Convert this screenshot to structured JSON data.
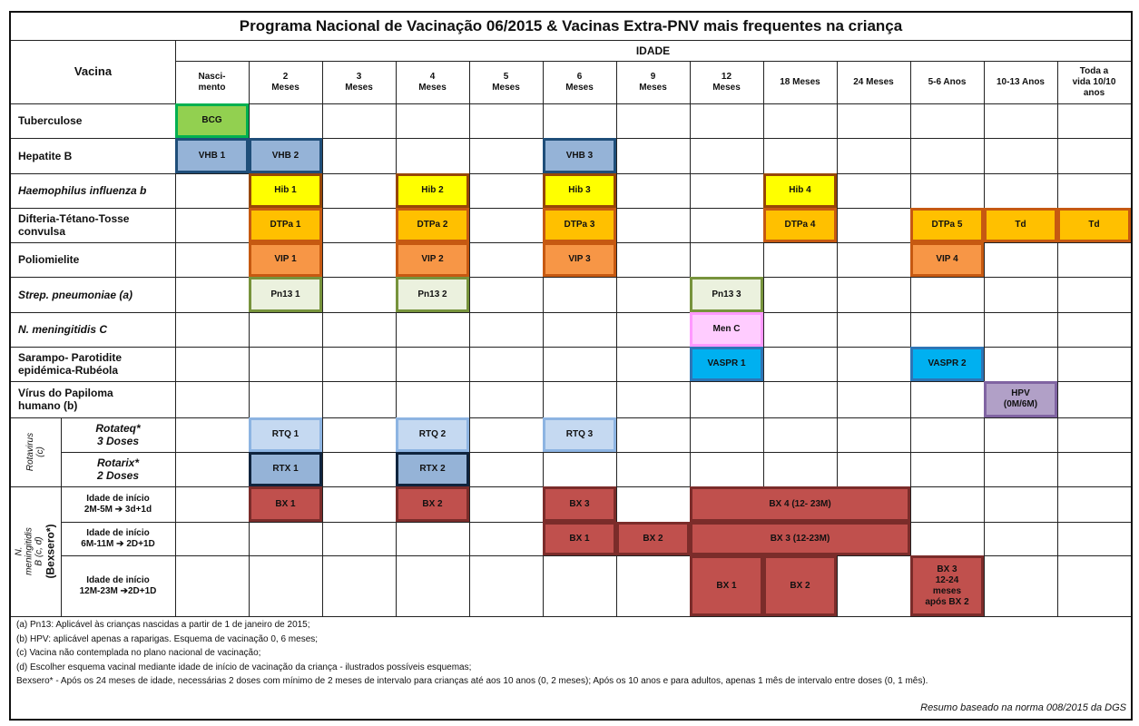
{
  "title": "Programa Nacional de Vacinação 06/2015 & Vacinas Extra-PNV mais frequentes na criança",
  "header": {
    "vacina": "Vacina",
    "idade": "IDADE",
    "ages": [
      "Nasci-\nmento",
      "2\nMeses",
      "3\nMeses",
      "4\nMeses",
      "5\nMeses",
      "6\nMeses",
      "9\nMeses",
      "12\nMeses",
      "18 Meses",
      "24 Meses",
      "5-6 Anos",
      "10-13 Anos",
      "Toda a\nvida 10/10\nanos"
    ]
  },
  "rows": [
    {
      "label": "Tuberculose",
      "italic": false
    },
    {
      "label": "Hepatite B",
      "italic": false
    },
    {
      "label": "Haemophilus influenza b",
      "italic": true
    },
    {
      "label": "Difteria-Tétano-Tosse\nconvulsa",
      "italic": false
    },
    {
      "label": "Poliomielite",
      "italic": false
    },
    {
      "label": "Strep. pneumoniae (a)",
      "italic": true
    },
    {
      "label": "N. meningitidis C",
      "italic": true
    },
    {
      "label": "Sarampo- Parotidite\nepidémica-Rubéola",
      "italic": false
    },
    {
      "label": "Vírus do Papiloma\nhumano (b)",
      "italic": false
    }
  ],
  "rotavirus": {
    "group_label": "Rotavirus\n(c)",
    "rows": [
      "Rotateq*\n3 Doses",
      "Rotarix*\n2 Doses"
    ]
  },
  "menb": {
    "group_label_a": "N. meningitidis B (c, d)",
    "group_label_b": "(Bexsero*)",
    "rows": [
      "Idade de início\n2M-5M ➔ 3d+1d",
      "Idade de início\n6M-11M ➔ 2D+1D",
      "Idade de início\n12M-23M ➔2D+1D"
    ]
  },
  "doses": [
    {
      "text": "BCG",
      "row": 0,
      "c0": 0,
      "c1": 0,
      "fill": "#92d050",
      "border": "#00b050"
    },
    {
      "text": "VHB 1",
      "row": 1,
      "c0": 0,
      "c1": 0,
      "fill": "#95b3d7",
      "border": "#1f4e79"
    },
    {
      "text": "VHB 2",
      "row": 1,
      "c0": 1,
      "c1": 1,
      "fill": "#95b3d7",
      "border": "#1f4e79"
    },
    {
      "text": "VHB 3",
      "row": 1,
      "c0": 5,
      "c1": 5,
      "fill": "#95b3d7",
      "border": "#1f4e79"
    },
    {
      "text": "Hib 1",
      "row": 2,
      "c0": 1,
      "c1": 1,
      "fill": "#ffff00",
      "border": "#974706"
    },
    {
      "text": "Hib 2",
      "row": 2,
      "c0": 3,
      "c1": 3,
      "fill": "#ffff00",
      "border": "#974706"
    },
    {
      "text": "Hib 3",
      "row": 2,
      "c0": 5,
      "c1": 5,
      "fill": "#ffff00",
      "border": "#974706"
    },
    {
      "text": "Hib 4",
      "row": 2,
      "c0": 8,
      "c1": 8,
      "fill": "#ffff00",
      "border": "#974706"
    },
    {
      "text": "DTPa 1",
      "row": 3,
      "c0": 1,
      "c1": 1,
      "fill": "#ffc000",
      "border": "#c65911"
    },
    {
      "text": "DTPa 2",
      "row": 3,
      "c0": 3,
      "c1": 3,
      "fill": "#ffc000",
      "border": "#c65911"
    },
    {
      "text": "DTPa 3",
      "row": 3,
      "c0": 5,
      "c1": 5,
      "fill": "#ffc000",
      "border": "#c65911"
    },
    {
      "text": "DTPa 4",
      "row": 3,
      "c0": 8,
      "c1": 8,
      "fill": "#ffc000",
      "border": "#c65911"
    },
    {
      "text": "DTPa 5",
      "row": 3,
      "c0": 10,
      "c1": 10,
      "fill": "#ffc000",
      "border": "#c65911"
    },
    {
      "text": "Td",
      "row": 3,
      "c0": 11,
      "c1": 11,
      "fill": "#ffc000",
      "border": "#c65911"
    },
    {
      "text": "Td",
      "row": 3,
      "c0": 12,
      "c1": 12,
      "fill": "#ffc000",
      "border": "#c65911"
    },
    {
      "text": "VIP 1",
      "row": 4,
      "c0": 1,
      "c1": 1,
      "fill": "#f79646",
      "border": "#c65911"
    },
    {
      "text": "VIP 2",
      "row": 4,
      "c0": 3,
      "c1": 3,
      "fill": "#f79646",
      "border": "#c65911"
    },
    {
      "text": "VIP 3",
      "row": 4,
      "c0": 5,
      "c1": 5,
      "fill": "#f79646",
      "border": "#c65911"
    },
    {
      "text": "VIP 4",
      "row": 4,
      "c0": 10,
      "c1": 10,
      "fill": "#f79646",
      "border": "#c65911"
    },
    {
      "text": "Pn13 1",
      "row": 5,
      "c0": 1,
      "c1": 1,
      "fill": "#ebf1de",
      "border": "#77933c"
    },
    {
      "text": "Pn13 2",
      "row": 5,
      "c0": 3,
      "c1": 3,
      "fill": "#ebf1de",
      "border": "#77933c"
    },
    {
      "text": "Pn13 3",
      "row": 5,
      "c0": 7,
      "c1": 7,
      "fill": "#ebf1de",
      "border": "#77933c"
    },
    {
      "text": "Men C",
      "row": 6,
      "c0": 7,
      "c1": 7,
      "fill": "#ffccff",
      "border": "#ff99ff"
    },
    {
      "text": "VASPR 1",
      "row": 7,
      "c0": 7,
      "c1": 7,
      "fill": "#00b0f0",
      "border": "#2e75b6"
    },
    {
      "text": "VASPR 2",
      "row": 7,
      "c0": 10,
      "c1": 10,
      "fill": "#00b0f0",
      "border": "#2e75b6"
    },
    {
      "text": "HPV\n(0M/6M)",
      "row": 8,
      "c0": 11,
      "c1": 11,
      "fill": "#b1a0c7",
      "border": "#8064a2"
    },
    {
      "text": "RTQ 1",
      "row": 9,
      "c0": 1,
      "c1": 1,
      "fill": "#c5d9f1",
      "border": "#8db4e2"
    },
    {
      "text": "RTQ 2",
      "row": 9,
      "c0": 3,
      "c1": 3,
      "fill": "#c5d9f1",
      "border": "#8db4e2"
    },
    {
      "text": "RTQ 3",
      "row": 9,
      "c0": 5,
      "c1": 5,
      "fill": "#c5d9f1",
      "border": "#8db4e2"
    },
    {
      "text": "RTX 1",
      "row": 10,
      "c0": 1,
      "c1": 1,
      "fill": "#95b3d7",
      "border": "#0f243e"
    },
    {
      "text": "RTX 2",
      "row": 10,
      "c0": 3,
      "c1": 3,
      "fill": "#95b3d7",
      "border": "#0f243e"
    },
    {
      "text": "BX 1",
      "row": 11,
      "c0": 1,
      "c1": 1,
      "fill": "#c0504d",
      "border": "#7b2c2a"
    },
    {
      "text": "BX 2",
      "row": 11,
      "c0": 3,
      "c1": 3,
      "fill": "#c0504d",
      "border": "#7b2c2a"
    },
    {
      "text": "BX 3",
      "row": 11,
      "c0": 5,
      "c1": 5,
      "fill": "#c0504d",
      "border": "#7b2c2a"
    },
    {
      "text": "BX 4 (12- 23M)",
      "row": 11,
      "c0": 7,
      "c1": 9,
      "fill": "#c0504d",
      "border": "#7b2c2a"
    },
    {
      "text": "BX 1",
      "row": 12,
      "c0": 5,
      "c1": 5,
      "fill": "#c0504d",
      "border": "#7b2c2a"
    },
    {
      "text": "BX 2",
      "row": 12,
      "c0": 6,
      "c1": 6,
      "fill": "#c0504d",
      "border": "#7b2c2a"
    },
    {
      "text": "BX 3 (12-23M)",
      "row": 12,
      "c0": 7,
      "c1": 9,
      "fill": "#c0504d",
      "border": "#7b2c2a"
    },
    {
      "text": "BX 1",
      "row": 13,
      "c0": 7,
      "c1": 7,
      "fill": "#c0504d",
      "border": "#7b2c2a"
    },
    {
      "text": "BX 2",
      "row": 13,
      "c0": 8,
      "c1": 8,
      "fill": "#c0504d",
      "border": "#7b2c2a"
    },
    {
      "text": "BX 3\n12-24\nmeses\napós BX 2",
      "row": 13,
      "c0": 10,
      "c1": 10,
      "fill": "#c0504d",
      "border": "#7b2c2a"
    }
  ],
  "notes": [
    "(a)   Pn13: Aplicável às crianças nascidas a partir de 1 de janeiro de 2015;",
    "(b)   HPV: aplicável apenas a raparigas. Esquema de vacinação 0, 6 meses;",
    "(c)   Vacina não contemplada no plano nacional de vacinação;",
    "(d)   Escolher esquema vacinal mediante idade de início de vacinação da criança - ilustrados possíveis esquemas;",
    "Bexsero* - Após os 24 meses de idade, necessárias 2 doses com mínimo de 2 meses de intervalo para crianças até aos 10 anos (0, 2 meses); Após os 10 anos e para adultos, apenas 1 mês de intervalo entre doses (0, 1 mês)."
  ],
  "footer": "Resumo baseado na norma 008/2015 da DGS"
}
